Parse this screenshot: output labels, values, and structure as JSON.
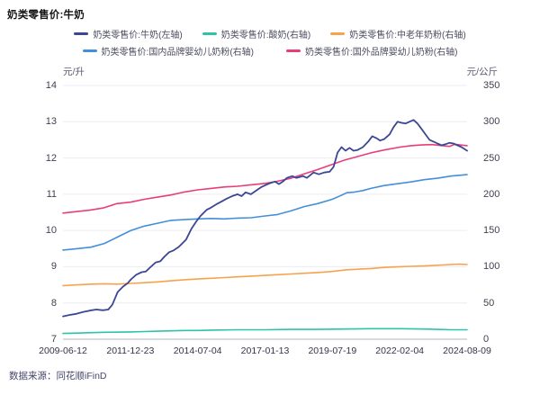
{
  "window": {
    "title": "奶类零售价:牛奶"
  },
  "source_note": "数据来源：同花顺iFinD",
  "chart_data": {
    "type": "line",
    "title": "奶类零售价:牛奶",
    "legend_position": "top",
    "grid": true,
    "left_axis": {
      "unit": "元/升",
      "min": 7,
      "max": 14,
      "ticks": [
        14,
        13,
        12,
        11,
        10,
        9,
        8,
        7
      ]
    },
    "right_axis": {
      "unit": "元/公斤",
      "min": 0,
      "max": 350,
      "ticks": [
        350,
        300,
        250,
        200,
        150,
        100,
        50,
        0
      ]
    },
    "x_ticks": [
      "2009-06-12",
      "2011-12-23",
      "2014-07-04",
      "2017-01-13",
      "2019-07-19",
      "2022-02-04",
      "2024-08-09"
    ],
    "x_range_years": [
      2009.45,
      2024.61
    ],
    "legend_rows": [
      [
        0,
        1,
        2
      ],
      [
        3,
        4
      ]
    ],
    "draw_order": [
      1,
      2,
      3,
      4,
      0
    ],
    "series": [
      {
        "name": "奶类零售价:牛奶(左轴)",
        "axis": "left",
        "color": "#3b4796",
        "unit": "元/升",
        "points": [
          [
            2009.45,
            7.63
          ],
          [
            2009.7,
            7.67
          ],
          [
            2009.95,
            7.7
          ],
          [
            2010.2,
            7.75
          ],
          [
            2010.45,
            7.79
          ],
          [
            2010.7,
            7.82
          ],
          [
            2010.95,
            7.8
          ],
          [
            2011.15,
            7.82
          ],
          [
            2011.3,
            7.95
          ],
          [
            2011.5,
            8.3
          ],
          [
            2011.7,
            8.45
          ],
          [
            2011.88,
            8.55
          ],
          [
            2012.0,
            8.65
          ],
          [
            2012.2,
            8.78
          ],
          [
            2012.4,
            8.85
          ],
          [
            2012.56,
            8.87
          ],
          [
            2012.75,
            9.0
          ],
          [
            2012.93,
            9.12
          ],
          [
            2013.1,
            9.15
          ],
          [
            2013.26,
            9.28
          ],
          [
            2013.43,
            9.4
          ],
          [
            2013.6,
            9.45
          ],
          [
            2013.8,
            9.55
          ],
          [
            2014.07,
            9.75
          ],
          [
            2014.27,
            10.05
          ],
          [
            2014.45,
            10.25
          ],
          [
            2014.61,
            10.4
          ],
          [
            2014.84,
            10.57
          ],
          [
            2015.0,
            10.63
          ],
          [
            2015.2,
            10.72
          ],
          [
            2015.4,
            10.8
          ],
          [
            2015.6,
            10.88
          ],
          [
            2015.8,
            10.95
          ],
          [
            2016.0,
            11.0
          ],
          [
            2016.15,
            10.95
          ],
          [
            2016.3,
            11.05
          ],
          [
            2016.5,
            11.0
          ],
          [
            2016.7,
            11.1
          ],
          [
            2016.9,
            11.2
          ],
          [
            2017.04,
            11.25
          ],
          [
            2017.2,
            11.3
          ],
          [
            2017.4,
            11.35
          ],
          [
            2017.55,
            11.28
          ],
          [
            2017.7,
            11.35
          ],
          [
            2017.85,
            11.45
          ],
          [
            2018.05,
            11.5
          ],
          [
            2018.2,
            11.45
          ],
          [
            2018.45,
            11.5
          ],
          [
            2018.6,
            11.45
          ],
          [
            2018.85,
            11.6
          ],
          [
            2019.05,
            11.55
          ],
          [
            2019.25,
            11.6
          ],
          [
            2019.45,
            11.62
          ],
          [
            2019.6,
            11.75
          ],
          [
            2019.75,
            12.15
          ],
          [
            2019.9,
            12.3
          ],
          [
            2020.05,
            12.2
          ],
          [
            2020.2,
            12.28
          ],
          [
            2020.35,
            12.2
          ],
          [
            2020.5,
            12.22
          ],
          [
            2020.7,
            12.3
          ],
          [
            2020.9,
            12.45
          ],
          [
            2021.05,
            12.6
          ],
          [
            2021.2,
            12.55
          ],
          [
            2021.35,
            12.48
          ],
          [
            2021.5,
            12.52
          ],
          [
            2021.7,
            12.65
          ],
          [
            2021.85,
            12.85
          ],
          [
            2022.0,
            13.0
          ],
          [
            2022.15,
            12.97
          ],
          [
            2022.3,
            12.95
          ],
          [
            2022.45,
            13.0
          ],
          [
            2022.6,
            13.05
          ],
          [
            2022.75,
            12.95
          ],
          [
            2022.9,
            12.8
          ],
          [
            2023.05,
            12.65
          ],
          [
            2023.2,
            12.5
          ],
          [
            2023.35,
            12.45
          ],
          [
            2023.5,
            12.4
          ],
          [
            2023.65,
            12.35
          ],
          [
            2023.8,
            12.38
          ],
          [
            2023.95,
            12.42
          ],
          [
            2024.1,
            12.4
          ],
          [
            2024.25,
            12.35
          ],
          [
            2024.4,
            12.3
          ],
          [
            2024.61,
            12.2
          ]
        ]
      },
      {
        "name": "奶类零售价:酸奶(右轴)",
        "axis": "right",
        "color": "#2cc3a8",
        "unit": "元/公斤",
        "points": [
          [
            2009.45,
            8
          ],
          [
            2010,
            8.5
          ],
          [
            2010.5,
            9
          ],
          [
            2011,
            9.5
          ],
          [
            2011.98,
            10
          ],
          [
            2012.5,
            10.5
          ],
          [
            2013,
            11
          ],
          [
            2013.5,
            11.5
          ],
          [
            2014,
            12
          ],
          [
            2014.5,
            12
          ],
          [
            2015,
            12.5
          ],
          [
            2016,
            13
          ],
          [
            2017.04,
            13
          ],
          [
            2018,
            13.5
          ],
          [
            2019,
            13.5
          ],
          [
            2020,
            14
          ],
          [
            2021,
            14.5
          ],
          [
            2022.09,
            14.5
          ],
          [
            2023,
            14
          ],
          [
            2023.5,
            13.5
          ],
          [
            2024,
            13
          ],
          [
            2024.61,
            13
          ]
        ]
      },
      {
        "name": "奶类零售价:中老年奶粉(右轴)",
        "axis": "right",
        "color": "#f7a34c",
        "unit": "元/公斤",
        "points": [
          [
            2009.45,
            74
          ],
          [
            2010,
            75
          ],
          [
            2010.5,
            76
          ],
          [
            2011,
            76.5
          ],
          [
            2011.47,
            76
          ],
          [
            2011.98,
            77
          ],
          [
            2012.5,
            78
          ],
          [
            2013,
            79
          ],
          [
            2013.5,
            80.5
          ],
          [
            2014,
            82
          ],
          [
            2014.5,
            83
          ],
          [
            2015,
            84
          ],
          [
            2015.5,
            85
          ],
          [
            2016,
            86
          ],
          [
            2016.5,
            87
          ],
          [
            2017.04,
            88
          ],
          [
            2017.5,
            89
          ],
          [
            2018,
            90
          ],
          [
            2018.5,
            91
          ],
          [
            2019,
            92
          ],
          [
            2019.55,
            93.5
          ],
          [
            2020,
            95.5
          ],
          [
            2020.5,
            96.5
          ],
          [
            2021,
            97.5
          ],
          [
            2021.5,
            99
          ],
          [
            2022.09,
            100
          ],
          [
            2022.5,
            100.5
          ],
          [
            2023,
            101
          ],
          [
            2023.5,
            102
          ],
          [
            2024,
            103
          ],
          [
            2024.3,
            103.5
          ],
          [
            2024.61,
            103
          ]
        ]
      },
      {
        "name": "奶类零售价:国内品牌婴幼儿奶粉(右轴)",
        "axis": "right",
        "color": "#448fd9",
        "unit": "元/公斤",
        "points": [
          [
            2009.45,
            123
          ],
          [
            2010,
            125
          ],
          [
            2010.5,
            127
          ],
          [
            2011,
            132
          ],
          [
            2011.5,
            141
          ],
          [
            2012,
            150
          ],
          [
            2012.5,
            156
          ],
          [
            2013,
            160
          ],
          [
            2013.5,
            164
          ],
          [
            2014,
            165
          ],
          [
            2014.5,
            166
          ],
          [
            2015,
            166.5
          ],
          [
            2015.5,
            166
          ],
          [
            2016,
            167
          ],
          [
            2016.5,
            167.5
          ],
          [
            2017.04,
            170
          ],
          [
            2017.5,
            172
          ],
          [
            2018,
            177
          ],
          [
            2018.5,
            183
          ],
          [
            2019,
            187
          ],
          [
            2019.55,
            193
          ],
          [
            2019.8,
            197
          ],
          [
            2020.1,
            202
          ],
          [
            2020.4,
            203
          ],
          [
            2020.7,
            205
          ],
          [
            2021,
            208
          ],
          [
            2021.5,
            212
          ],
          [
            2022.09,
            215
          ],
          [
            2022.5,
            217
          ],
          [
            2023,
            220
          ],
          [
            2023.5,
            222
          ],
          [
            2024,
            225
          ],
          [
            2024.61,
            227
          ]
        ]
      },
      {
        "name": "奶类零售价:国外品牌婴幼儿奶粉(右轴)",
        "axis": "right",
        "color": "#e83e78",
        "unit": "元/公斤",
        "points": [
          [
            2009.45,
            174
          ],
          [
            2009.95,
            176
          ],
          [
            2010.45,
            178
          ],
          [
            2010.95,
            181
          ],
          [
            2011.47,
            187
          ],
          [
            2011.98,
            189
          ],
          [
            2012.5,
            193
          ],
          [
            2013,
            196
          ],
          [
            2013.5,
            199
          ],
          [
            2014,
            203
          ],
          [
            2014.5,
            206
          ],
          [
            2015,
            208
          ],
          [
            2015.5,
            210
          ],
          [
            2016,
            211
          ],
          [
            2016.5,
            213
          ],
          [
            2017.04,
            215
          ],
          [
            2017.5,
            218
          ],
          [
            2018,
            222
          ],
          [
            2018.5,
            228
          ],
          [
            2019,
            234
          ],
          [
            2019.55,
            241
          ],
          [
            2020,
            247
          ],
          [
            2020.5,
            252
          ],
          [
            2021,
            257
          ],
          [
            2021.5,
            261
          ],
          [
            2022.09,
            265
          ],
          [
            2022.5,
            267
          ],
          [
            2022.9,
            268
          ],
          [
            2023.3,
            268.5
          ],
          [
            2023.7,
            267
          ],
          [
            2023.95,
            266
          ],
          [
            2024.15,
            269
          ],
          [
            2024.35,
            268
          ],
          [
            2024.61,
            267
          ]
        ]
      }
    ],
    "style": {
      "gridline_color": "#ececf4",
      "baseline_color": "#b3b4bf",
      "background": "#ffffff"
    }
  }
}
